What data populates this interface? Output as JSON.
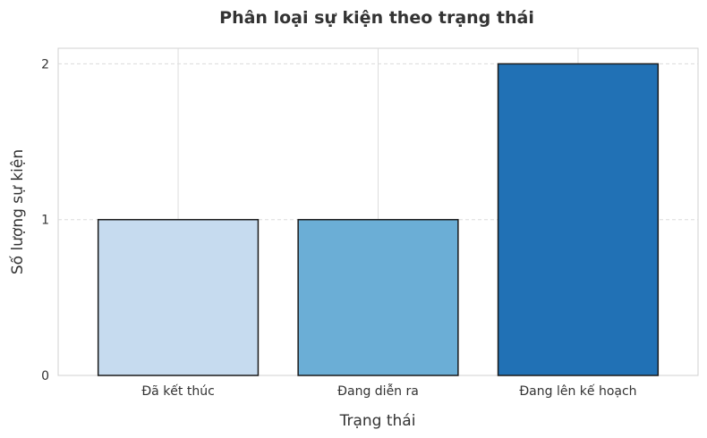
{
  "chart_data": {
    "type": "bar",
    "title": "Phân loại sự kiện theo trạng thái",
    "xlabel": "Trạng thái",
    "ylabel": "Số lượng sự kiện",
    "categories": [
      "Đã kết thúc",
      "Đang diễn ra",
      "Đang lên kế hoạch"
    ],
    "values": [
      1,
      1,
      2
    ],
    "colors": [
      "#c6dbef",
      "#6baed6",
      "#2171b5"
    ],
    "edge_color": "#1a1a1a",
    "ylim": [
      0,
      2.1
    ],
    "yticks": [
      0,
      1,
      2
    ],
    "grid": true,
    "legend": "none"
  }
}
